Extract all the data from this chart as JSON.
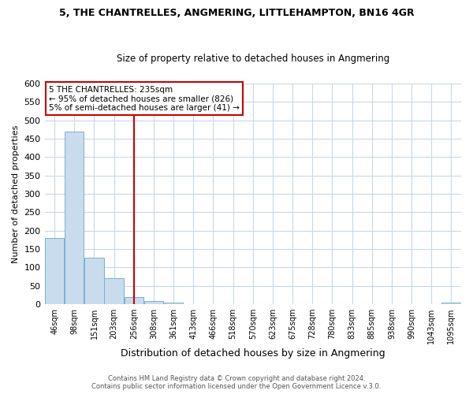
{
  "title": "5, THE CHANTRELLES, ANGMERING, LITTLEHAMPTON, BN16 4GR",
  "subtitle": "Size of property relative to detached houses in Angmering",
  "xlabel": "Distribution of detached houses by size in Angmering",
  "ylabel": "Number of detached properties",
  "bar_color": "#c8dced",
  "bar_edge_color": "#7ab0d0",
  "bin_labels": [
    "46sqm",
    "98sqm",
    "151sqm",
    "203sqm",
    "256sqm",
    "308sqm",
    "361sqm",
    "413sqm",
    "466sqm",
    "518sqm",
    "570sqm",
    "623sqm",
    "675sqm",
    "728sqm",
    "780sqm",
    "833sqm",
    "885sqm",
    "938sqm",
    "990sqm",
    "1043sqm",
    "1095sqm"
  ],
  "bar_heights": [
    180,
    468,
    126,
    70,
    19,
    8,
    5,
    0,
    0,
    0,
    0,
    0,
    0,
    0,
    0,
    0,
    0,
    0,
    0,
    0,
    5
  ],
  "vline_x": 4,
  "vline_color": "#cc0000",
  "ylim": [
    0,
    600
  ],
  "yticks": [
    0,
    50,
    100,
    150,
    200,
    250,
    300,
    350,
    400,
    450,
    500,
    550,
    600
  ],
  "annotation_title": "5 THE CHANTRELLES: 235sqm",
  "annotation_line1": "← 95% of detached houses are smaller (826)",
  "annotation_line2": "5% of semi-detached houses are larger (41) →",
  "annotation_box_color": "#ffffff",
  "annotation_border_color": "#cc0000",
  "footer1": "Contains HM Land Registry data © Crown copyright and database right 2024.",
  "footer2": "Contains public sector information licensed under the Open Government Licence v.3.0.",
  "background_color": "#ffffff",
  "grid_color": "#c8d8e8"
}
